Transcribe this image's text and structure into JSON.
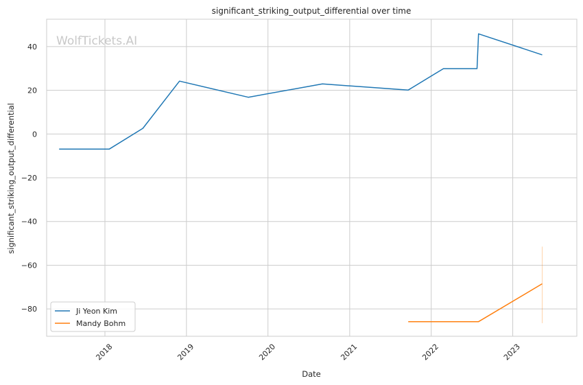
{
  "chart_data": {
    "type": "line",
    "title": "significant_striking_output_differential over time",
    "xlabel": "Date",
    "ylabel": "significant_striking_output_differential",
    "watermark": "WolfTickets.AI",
    "xlim": [
      "2017-04-15",
      "2023-10-15"
    ],
    "ylim": [
      -92.5,
      52.5
    ],
    "x_ticks": [
      "2018-01-01",
      "2019-01-01",
      "2020-01-01",
      "2021-01-01",
      "2022-01-01",
      "2023-01-01"
    ],
    "x_tick_labels": [
      "2018",
      "2019",
      "2020",
      "2021",
      "2022",
      "2023"
    ],
    "y_ticks": [
      -80,
      -60,
      -40,
      -20,
      0,
      20,
      40
    ],
    "y_tick_labels": [
      "−80",
      "−60",
      "−40",
      "−20",
      "0",
      "20",
      "40"
    ],
    "grid": true,
    "legend_position": "lower-left",
    "series": [
      {
        "name": "Ji Yeon Kim",
        "color": "#1f77b4",
        "points": [
          {
            "x": "2017-06-10",
            "y": -6.9
          },
          {
            "x": "2018-01-20",
            "y": -6.9
          },
          {
            "x": "2018-06-20",
            "y": 2.6
          },
          {
            "x": "2018-12-01",
            "y": 24.2
          },
          {
            "x": "2019-10-05",
            "y": 16.8
          },
          {
            "x": "2020-09-01",
            "y": 22.9
          },
          {
            "x": "2021-09-20",
            "y": 20.1
          },
          {
            "x": "2022-02-25",
            "y": 29.9
          },
          {
            "x": "2022-07-25",
            "y": 29.9
          },
          {
            "x": "2022-08-01",
            "y": 45.8
          },
          {
            "x": "2023-05-13",
            "y": 36.2
          }
        ]
      },
      {
        "name": "Mandy Bohm",
        "color": "#ff7f0e",
        "points": [
          {
            "x": "2021-09-20",
            "y": -85.8
          },
          {
            "x": "2022-08-01",
            "y": -85.8
          },
          {
            "x": "2023-05-13",
            "y": -68.5
          }
        ],
        "error_bar": {
          "x": "2023-05-13",
          "low": -86.5,
          "high": -51.5
        }
      }
    ]
  }
}
